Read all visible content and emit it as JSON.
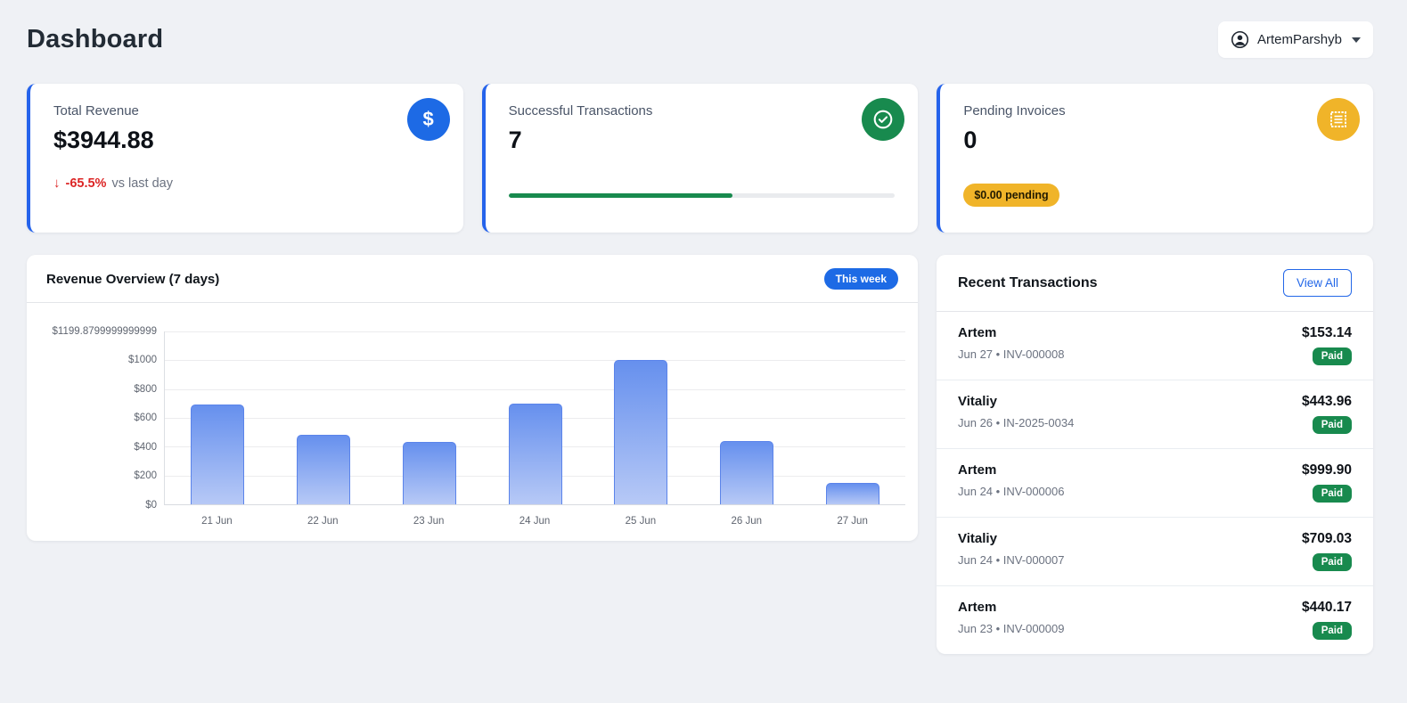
{
  "page": {
    "title": "Dashboard"
  },
  "header": {
    "user_name": "ArtemParshyb",
    "user_icon": "person-circle-icon",
    "caret_icon": "chevron-down-icon"
  },
  "stats": {
    "total_revenue": {
      "label": "Total Revenue",
      "value": "$3944.88",
      "delta_arrow": "↓",
      "delta_value": "-65.5%",
      "delta_suffix": "vs last day",
      "icon": "dollar-icon",
      "icon_glyph": "$",
      "icon_color": "#1d6ae5"
    },
    "successful_transactions": {
      "label": "Successful Transactions",
      "value": "7",
      "progress_percent": 58,
      "icon": "check-circle-icon",
      "icon_color": "#188a4e"
    },
    "pending_invoices": {
      "label": "Pending Invoices",
      "value": "0",
      "badge": "$0.00 pending",
      "icon": "invoice-icon",
      "icon_color": "#f0b429"
    }
  },
  "chart": {
    "title": "Revenue Overview (7 days)",
    "range_badge": "This week"
  },
  "chart_data": {
    "type": "bar",
    "title": "Revenue Overview (7 days)",
    "categories": [
      "21 Jun",
      "22 Jun",
      "23 Jun",
      "24 Jun",
      "25 Jun",
      "26 Jun",
      "27 Jun"
    ],
    "values": [
      690,
      485,
      430,
      700,
      999.9,
      440,
      150
    ],
    "xlabel": "",
    "ylabel": "",
    "ylim": [
      0,
      1199.8799999999999
    ],
    "y_ticks": [
      {
        "value": 0,
        "label": "$0"
      },
      {
        "value": 200,
        "label": "$200"
      },
      {
        "value": 400,
        "label": "$400"
      },
      {
        "value": 600,
        "label": "$600"
      },
      {
        "value": 800,
        "label": "$800"
      },
      {
        "value": 1000,
        "label": "$1000"
      },
      {
        "value": 1199.8799999999999,
        "label": "$1199.8799999999999"
      }
    ],
    "grid": true,
    "legend": false,
    "bar_color_top": "#6690ee",
    "bar_color_bottom": "#b7c9f6",
    "bar_border_color": "#5b84ea"
  },
  "transactions_panel": {
    "title": "Recent Transactions",
    "view_all_label": "View All",
    "items": [
      {
        "name": "Artem",
        "meta": "Jun 27 • INV-000008",
        "amount": "$153.14",
        "status": "Paid"
      },
      {
        "name": "Vitaliy",
        "meta": "Jun 26 • IN-2025-0034",
        "amount": "$443.96",
        "status": "Paid"
      },
      {
        "name": "Artem",
        "meta": "Jun 24 • INV-000006",
        "amount": "$999.90",
        "status": "Paid"
      },
      {
        "name": "Vitaliy",
        "meta": "Jun 24 • INV-000007",
        "amount": "$709.03",
        "status": "Paid"
      },
      {
        "name": "Artem",
        "meta": "Jun 23 • INV-000009",
        "amount": "$440.17",
        "status": "Paid"
      }
    ]
  },
  "colors": {
    "accent_blue": "#1d6ae5",
    "card_border_blue": "#2563eb",
    "green": "#188a4e",
    "yellow": "#f0b429",
    "red": "#dc2626",
    "page_bg": "#eff1f5"
  }
}
